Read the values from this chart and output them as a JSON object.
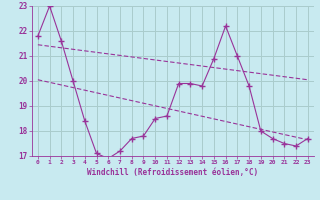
{
  "xlabel": "Windchill (Refroidissement éolien,°C)",
  "background_color": "#c8eaf0",
  "grid_color": "#aacccc",
  "line_color": "#993399",
  "trend1_x": [
    0,
    23
  ],
  "trend1_y": [
    21.45,
    20.05
  ],
  "trend2_x": [
    0,
    23
  ],
  "trend2_y": [
    20.05,
    17.65
  ],
  "ylim": [
    17.0,
    23.0
  ],
  "xlim": [
    -0.5,
    23.5
  ],
  "yticks": [
    17,
    18,
    19,
    20,
    21,
    22,
    23
  ],
  "xticks": [
    0,
    1,
    2,
    3,
    4,
    5,
    6,
    7,
    8,
    9,
    10,
    11,
    12,
    13,
    14,
    15,
    16,
    17,
    18,
    19,
    20,
    21,
    22,
    23
  ],
  "actual_data_x": [
    0,
    1,
    2,
    3,
    4,
    5,
    6,
    7,
    8,
    9,
    10,
    11,
    12,
    13,
    14,
    15,
    16,
    17,
    18,
    19,
    20,
    21,
    22,
    23
  ],
  "actual_data_y": [
    21.8,
    23.0,
    21.6,
    20.0,
    18.4,
    17.1,
    16.9,
    17.2,
    17.7,
    17.8,
    18.5,
    18.6,
    19.9,
    19.9,
    19.8,
    20.9,
    22.2,
    21.0,
    19.8,
    18.0,
    17.7,
    17.5,
    17.4,
    17.7
  ]
}
